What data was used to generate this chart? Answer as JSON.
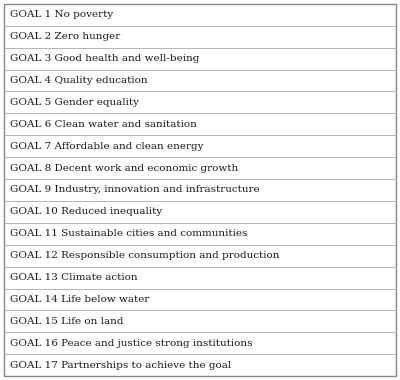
{
  "goals": [
    "GOAL 1 No poverty",
    "GOAL 2 Zero hunger",
    "GOAL 3 Good health and well-being",
    "GOAL 4 Quality education",
    "GOAL 5 Gender equality",
    "GOAL 6 Clean water and sanitation",
    "GOAL 7 Affordable and clean energy",
    "GOAL 8 Decent work and economic growth",
    "GOAL 9 Industry, innovation and infrastructure",
    "GOAL 10 Reduced inequality",
    "GOAL 11 Sustainable cities and communities",
    "GOAL 12 Responsible consumption and production",
    "GOAL 13 Climate action",
    "GOAL 14 Life below water",
    "GOAL 15 Life on land",
    "GOAL 16 Peace and justice strong institutions",
    "GOAL 17 Partnerships to achieve the goal"
  ],
  "background_color": "#ffffff",
  "border_color": "#888888",
  "line_color": "#aaaaaa",
  "text_color": "#1a1a1a",
  "font_size": 7.5,
  "figsize": [
    4.0,
    3.8
  ],
  "dpi": 100
}
